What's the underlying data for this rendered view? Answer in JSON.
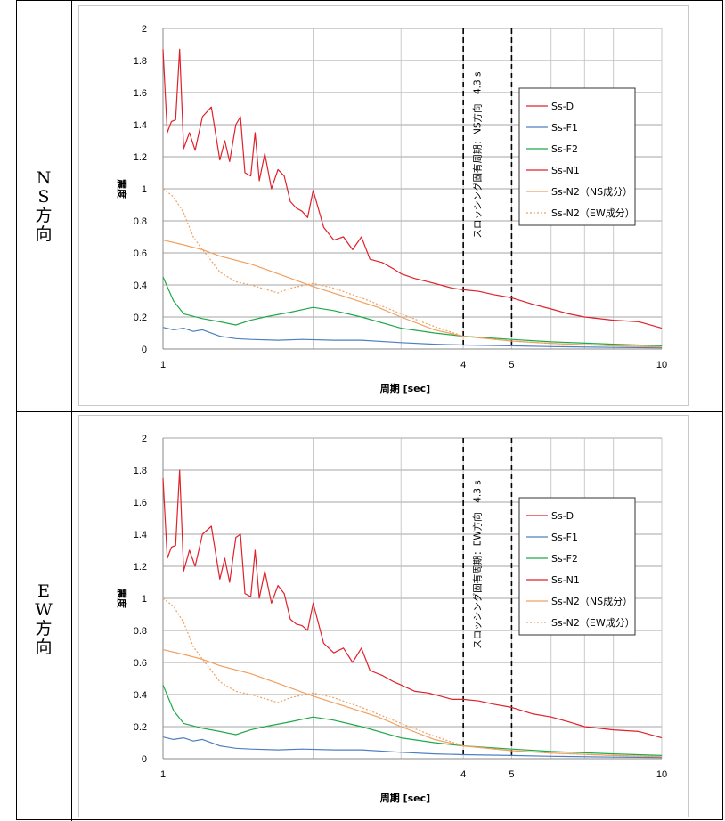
{
  "rows": [
    {
      "label": "NS方向"
    },
    {
      "label": "EW方向"
    }
  ],
  "colors": {
    "Ss-D": "#e0202a",
    "Ss-F1": "#4f7fbf",
    "Ss-F2": "#1faa4a",
    "Ss-N1": "#e0202a",
    "Ss-N2-NS": "#f0a060",
    "Ss-N2-EW": "#f0a060"
  },
  "chart_data": [
    {
      "type": "line",
      "xscale": "log",
      "xlim": [
        1,
        10
      ],
      "ylim": [
        0,
        2
      ],
      "grid": true,
      "legend_position": "right",
      "xlabel": "周期 [sec]",
      "ylabel": "震度",
      "xticks": [
        1,
        4,
        5,
        10
      ],
      "yticks": [
        "0",
        "0.2",
        "0.4",
        "0.6",
        "0.8",
        "1",
        "1.2",
        "1.4",
        "1.6",
        "1.8",
        "2"
      ],
      "vlines": [
        4,
        5
      ],
      "annotation": "スロッシング固有周期：NS方向　4.3 s",
      "series": [
        {
          "name": "Ss-D",
          "dash": false,
          "x": [
            1,
            10
          ],
          "y": [
            null,
            null
          ]
        },
        {
          "name": "Ss-F1",
          "dash": false,
          "x": [
            1,
            1.05,
            1.1,
            1.15,
            1.2,
            1.3,
            1.4,
            1.5,
            1.7,
            1.9,
            2.2,
            2.5,
            3,
            3.5,
            4,
            5,
            6,
            8,
            10
          ],
          "y": [
            0.135,
            0.12,
            0.13,
            0.11,
            0.12,
            0.08,
            0.065,
            0.06,
            0.055,
            0.06,
            0.055,
            0.055,
            0.04,
            0.03,
            0.025,
            0.02,
            0.015,
            0.01,
            0.008
          ]
        },
        {
          "name": "Ss-F2",
          "dash": false,
          "x": [
            1,
            1.05,
            1.1,
            1.2,
            1.3,
            1.4,
            1.5,
            1.6,
            1.8,
            2.0,
            2.2,
            2.5,
            3,
            3.5,
            4,
            5,
            6,
            8,
            10
          ],
          "y": [
            0.45,
            0.3,
            0.22,
            0.19,
            0.17,
            0.15,
            0.18,
            0.2,
            0.23,
            0.26,
            0.24,
            0.2,
            0.13,
            0.1,
            0.08,
            0.06,
            0.045,
            0.03,
            0.02
          ]
        },
        {
          "name": "Ss-N1",
          "dash": false,
          "x": [
            1,
            1.02,
            1.04,
            1.06,
            1.08,
            1.1,
            1.13,
            1.16,
            1.2,
            1.25,
            1.3,
            1.33,
            1.36,
            1.4,
            1.43,
            1.46,
            1.5,
            1.53,
            1.56,
            1.6,
            1.65,
            1.7,
            1.75,
            1.8,
            1.85,
            1.9,
            1.95,
            2.0,
            2.1,
            2.2,
            2.3,
            2.4,
            2.5,
            2.6,
            2.75,
            2.9,
            3.0,
            3.2,
            3.4,
            3.6,
            3.8,
            4.0,
            4.3,
            4.6,
            5.0,
            5.5,
            6.0,
            6.5,
            7.0,
            8.0,
            9.0,
            10.0
          ],
          "y": [
            1.87,
            1.35,
            1.42,
            1.43,
            1.87,
            1.25,
            1.35,
            1.24,
            1.45,
            1.51,
            1.18,
            1.3,
            1.17,
            1.4,
            1.45,
            1.1,
            1.08,
            1.35,
            1.05,
            1.22,
            1.0,
            1.12,
            1.08,
            0.92,
            0.88,
            0.86,
            0.82,
            0.99,
            0.76,
            0.68,
            0.7,
            0.62,
            0.7,
            0.56,
            0.54,
            0.5,
            0.47,
            0.44,
            0.42,
            0.4,
            0.38,
            0.37,
            0.36,
            0.34,
            0.32,
            0.28,
            0.25,
            0.22,
            0.2,
            0.18,
            0.17,
            0.13
          ]
        },
        {
          "name": "Ss-N2（NS成分）",
          "dash": false,
          "x": [
            1,
            1.1,
            1.2,
            1.3,
            1.5,
            1.7,
            2.0,
            2.3,
            2.7,
            3.0,
            3.5,
            4.0,
            5.0,
            6.0,
            8.0,
            10.0
          ],
          "y": [
            0.68,
            0.65,
            0.62,
            0.58,
            0.53,
            0.47,
            0.39,
            0.33,
            0.26,
            0.2,
            0.12,
            0.08,
            0.05,
            0.035,
            0.02,
            0.012
          ]
        },
        {
          "name": "Ss-N2（EW成分）",
          "dash": true,
          "x": [
            1,
            1.05,
            1.1,
            1.15,
            1.2,
            1.25,
            1.3,
            1.4,
            1.5,
            1.7,
            1.8,
            2.0,
            2.2,
            2.5,
            3.0,
            3.5,
            4.0,
            5.0,
            6.0,
            8.0,
            10.0
          ],
          "y": [
            1.0,
            0.95,
            0.85,
            0.7,
            0.62,
            0.55,
            0.48,
            0.42,
            0.4,
            0.35,
            0.38,
            0.41,
            0.38,
            0.32,
            0.22,
            0.14,
            0.08,
            0.05,
            0.035,
            0.02,
            0.015
          ]
        }
      ]
    },
    {
      "type": "line",
      "xscale": "log",
      "xlim": [
        1,
        10
      ],
      "ylim": [
        0,
        2
      ],
      "grid": true,
      "legend_position": "right",
      "xlabel": "周期 [sec]",
      "ylabel": "震度",
      "xticks": [
        1,
        4,
        5,
        10
      ],
      "yticks": [
        "0",
        "0.2",
        "0.4",
        "0.6",
        "0.8",
        "1",
        "1.2",
        "1.4",
        "1.6",
        "1.8",
        "2"
      ],
      "vlines": [
        4,
        5
      ],
      "annotation": "スロッシング固有周期：EW方向　4.3 s",
      "series": [
        {
          "name": "Ss-D",
          "dash": false,
          "x": [
            1,
            10
          ],
          "y": [
            null,
            null
          ]
        },
        {
          "name": "Ss-F1",
          "dash": false,
          "x": [
            1,
            1.05,
            1.1,
            1.15,
            1.2,
            1.3,
            1.4,
            1.5,
            1.7,
            1.9,
            2.2,
            2.5,
            3,
            3.5,
            4,
            5,
            6,
            8,
            10
          ],
          "y": [
            0.135,
            0.12,
            0.13,
            0.11,
            0.12,
            0.08,
            0.065,
            0.06,
            0.055,
            0.06,
            0.055,
            0.055,
            0.04,
            0.03,
            0.025,
            0.02,
            0.015,
            0.01,
            0.008
          ]
        },
        {
          "name": "Ss-F2",
          "dash": false,
          "x": [
            1,
            1.05,
            1.1,
            1.2,
            1.3,
            1.4,
            1.5,
            1.6,
            1.8,
            2.0,
            2.2,
            2.5,
            3,
            3.5,
            4,
            5,
            6,
            8,
            10
          ],
          "y": [
            0.46,
            0.3,
            0.22,
            0.19,
            0.17,
            0.15,
            0.18,
            0.2,
            0.23,
            0.26,
            0.24,
            0.2,
            0.13,
            0.1,
            0.08,
            0.06,
            0.045,
            0.03,
            0.02
          ]
        },
        {
          "name": "Ss-N1",
          "dash": false,
          "x": [
            1,
            1.02,
            1.04,
            1.06,
            1.08,
            1.1,
            1.13,
            1.16,
            1.2,
            1.25,
            1.3,
            1.33,
            1.36,
            1.4,
            1.43,
            1.46,
            1.5,
            1.53,
            1.56,
            1.6,
            1.65,
            1.7,
            1.75,
            1.8,
            1.85,
            1.9,
            1.95,
            2.0,
            2.1,
            2.2,
            2.3,
            2.4,
            2.5,
            2.6,
            2.75,
            2.9,
            3.0,
            3.2,
            3.4,
            3.6,
            3.8,
            4.0,
            4.3,
            4.6,
            5.0,
            5.5,
            6.0,
            6.5,
            7.0,
            8.0,
            9.0,
            10.0
          ],
          "y": [
            1.75,
            1.25,
            1.32,
            1.33,
            1.8,
            1.17,
            1.3,
            1.2,
            1.4,
            1.45,
            1.12,
            1.25,
            1.1,
            1.38,
            1.4,
            1.03,
            1.01,
            1.3,
            1.0,
            1.17,
            0.97,
            1.08,
            1.03,
            0.87,
            0.84,
            0.83,
            0.8,
            0.97,
            0.72,
            0.66,
            0.69,
            0.6,
            0.69,
            0.55,
            0.52,
            0.48,
            0.46,
            0.42,
            0.41,
            0.39,
            0.37,
            0.37,
            0.36,
            0.34,
            0.32,
            0.28,
            0.26,
            0.23,
            0.2,
            0.18,
            0.17,
            0.13
          ]
        },
        {
          "name": "Ss-N2（NS成分）",
          "dash": false,
          "x": [
            1,
            1.1,
            1.2,
            1.3,
            1.5,
            1.7,
            2.0,
            2.3,
            2.7,
            3.0,
            3.5,
            4.0,
            5.0,
            6.0,
            8.0,
            10.0
          ],
          "y": [
            0.68,
            0.65,
            0.62,
            0.58,
            0.53,
            0.47,
            0.39,
            0.33,
            0.26,
            0.2,
            0.12,
            0.08,
            0.05,
            0.035,
            0.02,
            0.012
          ]
        },
        {
          "name": "Ss-N2（EW成分）",
          "dash": true,
          "x": [
            1,
            1.05,
            1.1,
            1.15,
            1.2,
            1.25,
            1.3,
            1.4,
            1.5,
            1.7,
            1.8,
            2.0,
            2.2,
            2.5,
            3.0,
            3.5,
            4.0,
            5.0,
            6.0,
            8.0,
            10.0
          ],
          "y": [
            1.0,
            0.95,
            0.85,
            0.7,
            0.62,
            0.55,
            0.48,
            0.42,
            0.4,
            0.35,
            0.38,
            0.41,
            0.38,
            0.32,
            0.22,
            0.14,
            0.08,
            0.05,
            0.035,
            0.02,
            0.015
          ]
        }
      ]
    }
  ]
}
